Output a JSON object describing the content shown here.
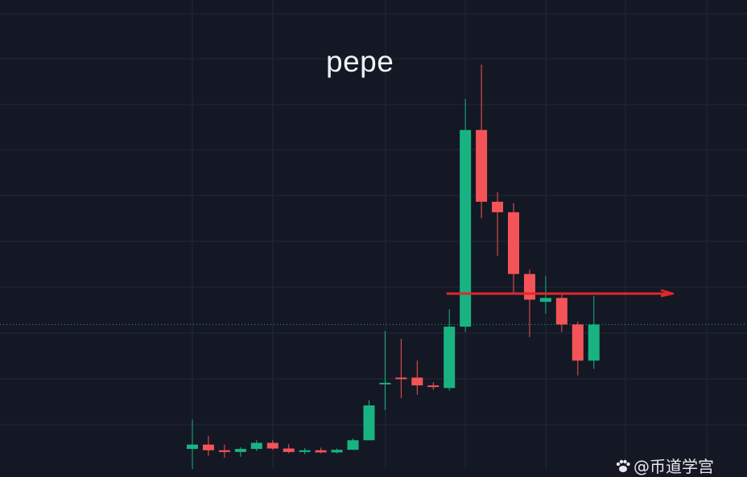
{
  "title": "pepe",
  "watermark": {
    "text": "@币道学宫",
    "icon": "paw-icon"
  },
  "colors": {
    "background": "#141824",
    "grid": "#222737",
    "up": "#19b382",
    "down": "#f45458",
    "annotation": "#e0282b",
    "price_line": "#2c9a92"
  },
  "chart_data": {
    "type": "candlestick",
    "title": "pepe",
    "ylim": [
      0,
      100
    ],
    "grid": true,
    "candles": [
      {
        "o": 4.6,
        "h": 11.4,
        "l": 0.0,
        "c": 5.6
      },
      {
        "o": 5.6,
        "h": 7.6,
        "l": 3.0,
        "c": 4.3
      },
      {
        "o": 4.3,
        "h": 5.6,
        "l": 2.6,
        "c": 3.9
      },
      {
        "o": 3.9,
        "h": 5.0,
        "l": 2.8,
        "c": 4.6
      },
      {
        "o": 4.6,
        "h": 6.6,
        "l": 4.1,
        "c": 6.0
      },
      {
        "o": 6.0,
        "h": 6.6,
        "l": 4.4,
        "c": 4.7
      },
      {
        "o": 4.7,
        "h": 5.7,
        "l": 3.6,
        "c": 3.9
      },
      {
        "o": 3.9,
        "h": 4.8,
        "l": 3.4,
        "c": 4.3
      },
      {
        "o": 4.3,
        "h": 4.9,
        "l": 3.6,
        "c": 3.8
      },
      {
        "o": 3.8,
        "h": 4.7,
        "l": 3.6,
        "c": 4.4
      },
      {
        "o": 4.4,
        "h": 7.0,
        "l": 4.4,
        "c": 6.6
      },
      {
        "o": 6.6,
        "h": 15.8,
        "l": 6.6,
        "c": 14.6
      },
      {
        "o": 19.8,
        "h": 31.7,
        "l": 13.5,
        "c": 19.8
      },
      {
        "o": 21.0,
        "h": 29.9,
        "l": 16.3,
        "c": 20.7
      },
      {
        "o": 21.0,
        "h": 24.9,
        "l": 17.1,
        "c": 19.2
      },
      {
        "o": 19.2,
        "h": 19.9,
        "l": 18.2,
        "c": 18.9
      },
      {
        "o": 18.6,
        "h": 36.7,
        "l": 18.0,
        "c": 32.7
      },
      {
        "o": 32.7,
        "h": 85.0,
        "l": 31.5,
        "c": 77.9
      },
      {
        "o": 77.9,
        "h": 92.9,
        "l": 57.6,
        "c": 61.4
      },
      {
        "o": 61.4,
        "h": 63.6,
        "l": 49.0,
        "c": 59.0
      },
      {
        "o": 59.0,
        "h": 61.1,
        "l": 40.5,
        "c": 44.8
      },
      {
        "o": 44.8,
        "h": 45.8,
        "l": 30.3,
        "c": 38.9
      },
      {
        "o": 38.4,
        "h": 44.4,
        "l": 35.7,
        "c": 39.3
      },
      {
        "o": 39.3,
        "h": 40.0,
        "l": 31.5,
        "c": 33.2
      },
      {
        "o": 33.2,
        "h": 33.9,
        "l": 21.5,
        "c": 24.9
      },
      {
        "o": 24.9,
        "h": 39.8,
        "l": 23.0,
        "c": 33.2
      }
    ],
    "horizontal_line": 40.3,
    "current_price": 33.2
  }
}
